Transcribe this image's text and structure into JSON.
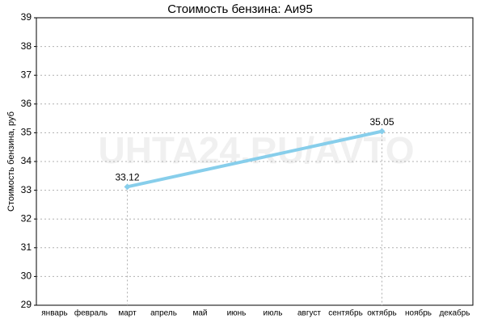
{
  "chart_data": {
    "type": "line",
    "title": "Стоимость бензина: Аи95",
    "y_label": "Стоимость бензина, руб",
    "watermark": "UHTA24.RU/AVTO",
    "categories": [
      "январь",
      "февраль",
      "март",
      "апрель",
      "май",
      "июнь",
      "июль",
      "август",
      "сентябрь",
      "октябрь",
      "ноябрь",
      "декабрь"
    ],
    "values": [
      null,
      null,
      33.12,
      null,
      null,
      null,
      null,
      null,
      null,
      35.05,
      null,
      null
    ],
    "color": "#87ceeb",
    "connect_gaps": true,
    "ylim": [
      29,
      39
    ],
    "yticks": [
      29,
      30,
      31,
      32,
      33,
      34,
      35,
      36,
      37,
      38,
      39
    ],
    "grid": true
  }
}
